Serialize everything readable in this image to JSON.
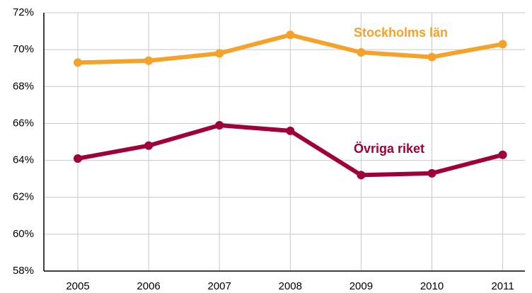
{
  "chart_data": {
    "type": "line",
    "categories": [
      "2005",
      "2006",
      "2007",
      "2008",
      "2009",
      "2010",
      "2011"
    ],
    "series": [
      {
        "name": "Stockholms län",
        "color": "#f5a22a",
        "values": [
          69.3,
          69.4,
          69.8,
          70.8,
          69.85,
          69.6,
          70.3
        ]
      },
      {
        "name": "Övriga riket",
        "color": "#a0003a",
        "values": [
          64.1,
          64.8,
          65.9,
          65.6,
          63.2,
          63.3,
          64.3
        ]
      }
    ],
    "ylim": [
      58,
      72
    ],
    "yticks": [
      {
        "value": 58,
        "label": "58%"
      },
      {
        "value": 60,
        "label": "60%"
      },
      {
        "value": 62,
        "label": "62%"
      },
      {
        "value": 64,
        "label": "64%"
      },
      {
        "value": 66,
        "label": "66%"
      },
      {
        "value": 68,
        "label": "68%"
      },
      {
        "value": 70,
        "label": "70%"
      },
      {
        "value": 72,
        "label": "72%"
      }
    ],
    "grid": true
  }
}
